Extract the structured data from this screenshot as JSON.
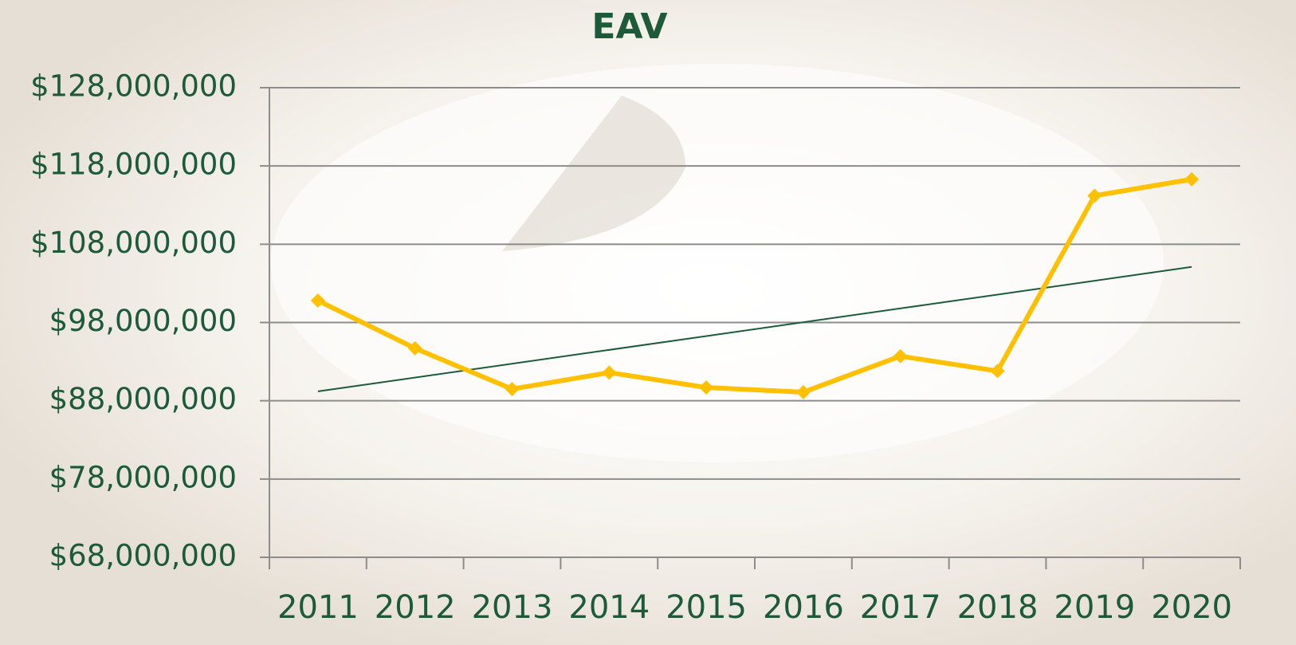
{
  "chart_data": {
    "type": "line",
    "title": "EAV",
    "categories": [
      "2011",
      "2012",
      "2013",
      "2014",
      "2015",
      "2016",
      "2017",
      "2018",
      "2019",
      "2020"
    ],
    "series": [
      {
        "color": "#ffc000",
        "values": [
          100800000,
          94700000,
          89500000,
          91600000,
          89700000,
          89100000,
          93700000,
          91800000,
          114200000,
          116300000
        ]
      }
    ],
    "trendline": {
      "color": "#1d5a3a",
      "values": [
        89200000,
        105100000
      ]
    },
    "ylim": [
      68000000,
      128000000
    ],
    "yticks": [
      {
        "value": 68000000,
        "label": "$68,000,000"
      },
      {
        "value": 78000000,
        "label": "$78,000,000"
      },
      {
        "value": 88000000,
        "label": "$88,000,000"
      },
      {
        "value": 98000000,
        "label": "$98,000,000"
      },
      {
        "value": 108000000,
        "label": "$108,000,000"
      },
      {
        "value": 118000000,
        "label": "$118,000,000"
      },
      {
        "value": 128000000,
        "label": "$128,000,000"
      }
    ],
    "grid": true
  }
}
